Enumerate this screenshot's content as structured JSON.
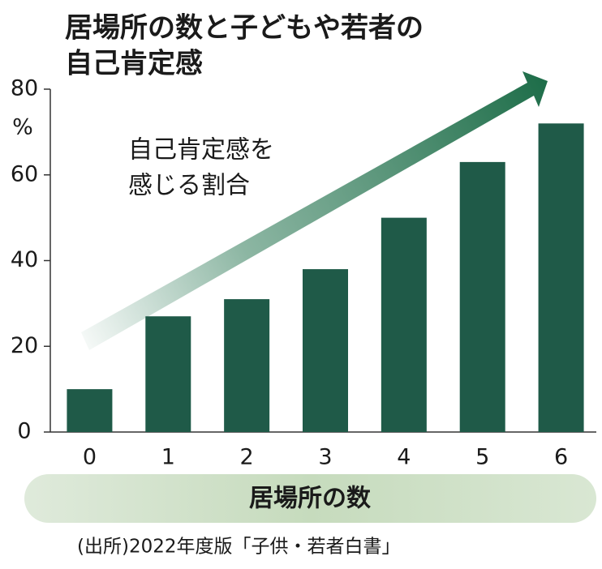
{
  "chart_data": {
    "type": "bar",
    "title": [
      "居場所の数と子どもや若者の",
      "自己肯定感"
    ],
    "y_unit": "%",
    "annotation": [
      "自己肯定感を",
      "感じる割合"
    ],
    "x_label": "居場所の数",
    "source": "(出所)2022年度版「子供・若者白書」",
    "categories": [
      "0",
      "1",
      "2",
      "3",
      "4",
      "5",
      "6"
    ],
    "values": [
      10,
      27,
      31,
      38,
      50,
      63,
      72
    ],
    "color": "#1f5a48",
    "ylim": [
      0,
      80
    ],
    "yticks": [
      0,
      20,
      40,
      60,
      80
    ],
    "grid": false
  }
}
